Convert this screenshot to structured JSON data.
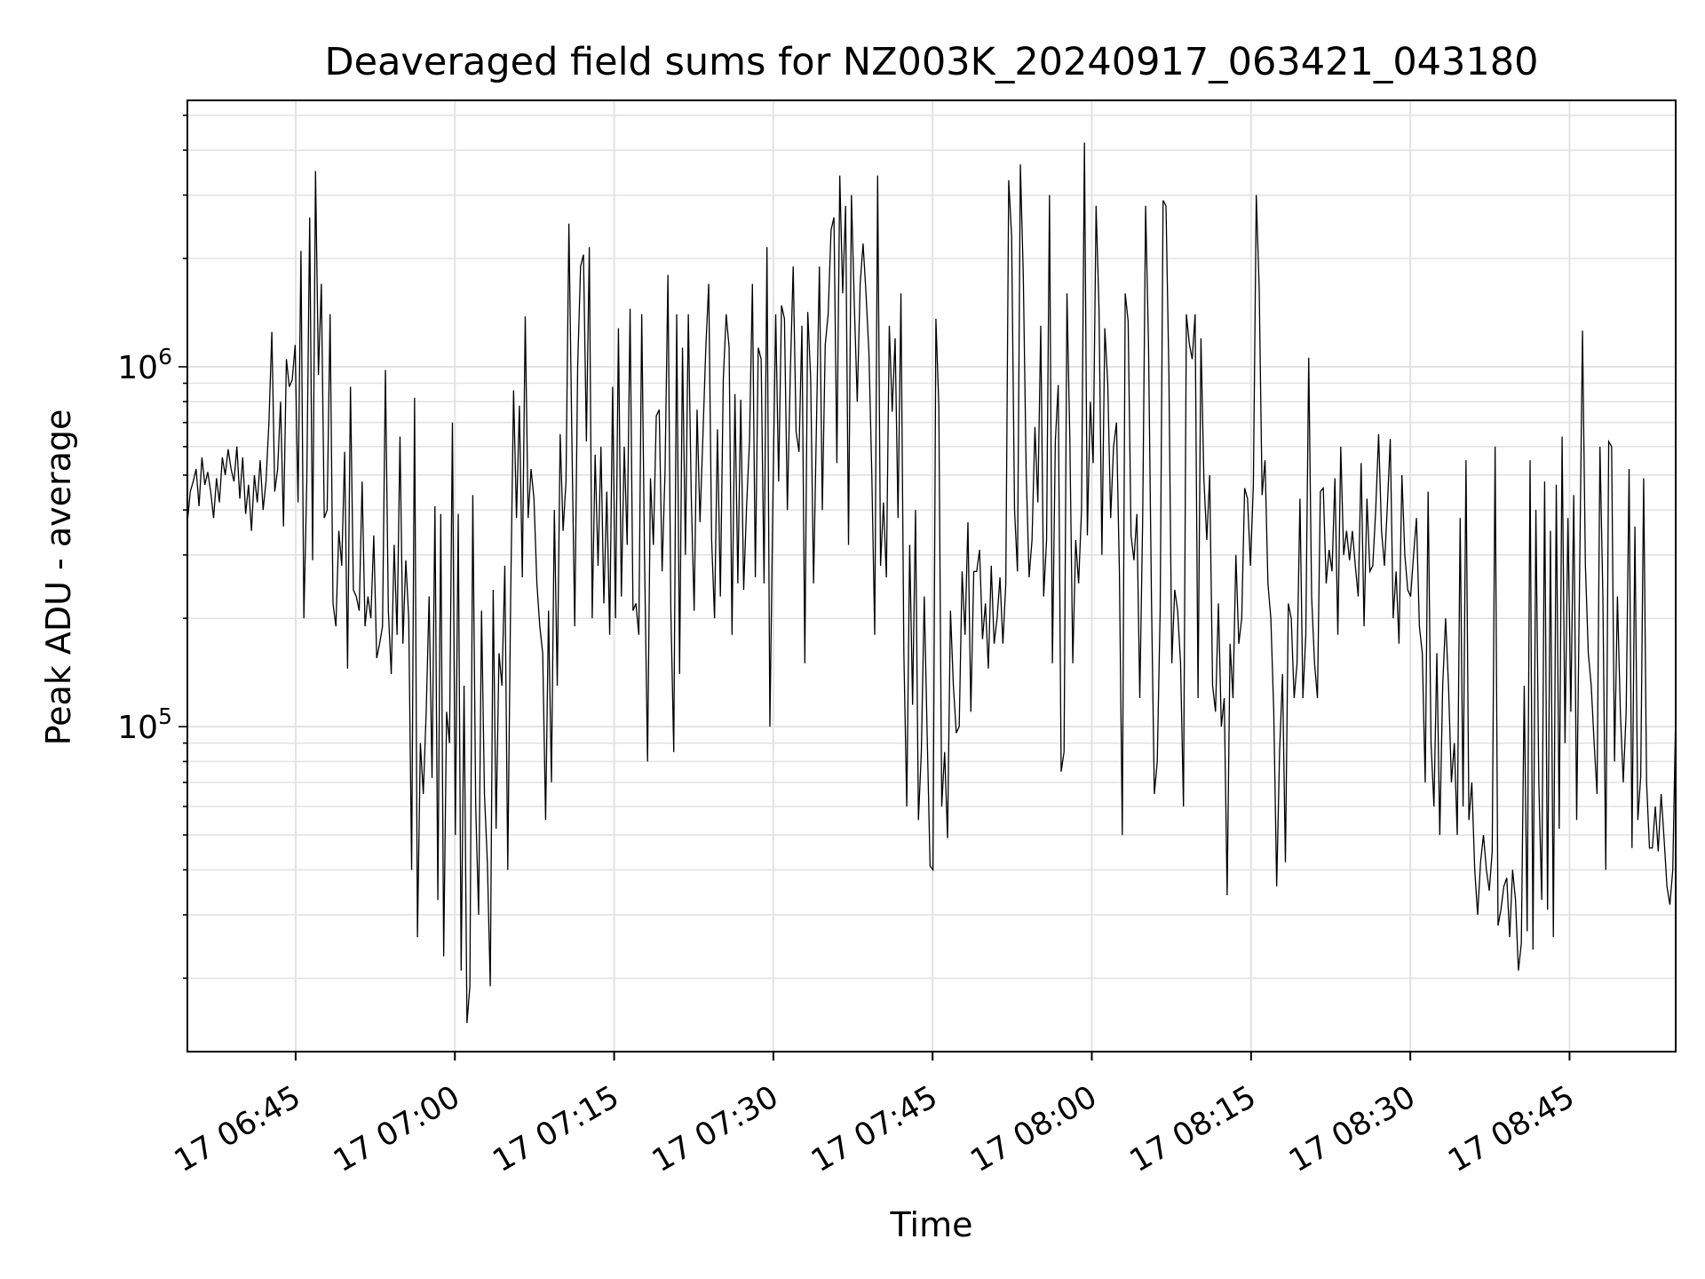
{
  "chart_data": {
    "type": "line",
    "title": "Deaveraged field sums for NZ003K_20240917_063421_043180",
    "xlabel": "Time",
    "ylabel": "Peak ADU - average",
    "yscale": "log",
    "ylim": [
      12500,
      5500000
    ],
    "xlim_minutes_after_0630": [
      4.8,
      145.0
    ],
    "grid": true,
    "line_color": "#000000",
    "xticks": [
      {
        "label": "17 06:45",
        "minute": 15
      },
      {
        "label": "17 07:00",
        "minute": 30
      },
      {
        "label": "17 07:15",
        "minute": 45
      },
      {
        "label": "17 07:30",
        "minute": 60
      },
      {
        "label": "17 07:45",
        "minute": 75
      },
      {
        "label": "17 08:00",
        "minute": 90
      },
      {
        "label": "17 08:15",
        "minute": 105
      },
      {
        "label": "17 08:30",
        "minute": 120
      },
      {
        "label": "17 08:45",
        "minute": 135
      }
    ],
    "yticks": [
      {
        "base": "10",
        "exp": "5",
        "value": 100000
      },
      {
        "base": "10",
        "exp": "6",
        "value": 1000000
      }
    ],
    "series": [
      {
        "time_range": [
          "06:34:48",
          "08:55:00"
        ],
        "y": [
          370000,
          450000,
          480000,
          520000,
          410000,
          560000,
          470000,
          510000,
          450000,
          380000,
          490000,
          420000,
          560000,
          500000,
          590000,
          520000,
          480000,
          600000,
          430000,
          560000,
          390000,
          470000,
          350000,
          500000,
          420000,
          550000,
          400000,
          480000,
          700000,
          1250000,
          450000,
          520000,
          800000,
          360000,
          1050000,
          880000,
          920000,
          1150000,
          420000,
          2100000,
          200000,
          480000,
          2600000,
          290000,
          3500000,
          950000,
          1700000,
          380000,
          400000,
          1400000,
          220000,
          190000,
          350000,
          280000,
          580000,
          145000,
          880000,
          240000,
          230000,
          210000,
          480000,
          190000,
          230000,
          200000,
          340000,
          155000,
          170000,
          190000,
          980000,
          210000,
          140000,
          320000,
          180000,
          640000,
          170000,
          290000,
          200000,
          40000,
          820000,
          26000,
          90000,
          65000,
          110000,
          230000,
          72000,
          410000,
          33000,
          390000,
          23000,
          110000,
          90000,
          700000,
          50000,
          390000,
          21000,
          130000,
          15000,
          19000,
          440000,
          60000,
          30000,
          210000,
          65000,
          42000,
          19000,
          240000,
          52000,
          160000,
          130000,
          280000,
          40000,
          230000,
          860000,
          380000,
          780000,
          260000,
          1380000,
          380000,
          520000,
          430000,
          250000,
          190000,
          160000,
          55000,
          210000,
          70000,
          400000,
          130000,
          650000,
          350000,
          480000,
          2500000,
          640000,
          190000,
          1000000,
          1900000,
          2050000,
          620000,
          2150000,
          200000,
          570000,
          280000,
          600000,
          220000,
          450000,
          180000,
          880000,
          200000,
          1280000,
          230000,
          600000,
          320000,
          1450000,
          210000,
          220000,
          180000,
          1400000,
          280000,
          80000,
          490000,
          320000,
          730000,
          760000,
          270000,
          510000,
          1800000,
          210000,
          85000,
          1400000,
          140000,
          1130000,
          300000,
          1400000,
          440000,
          210000,
          760000,
          370000,
          640000,
          1130000,
          1700000,
          330000,
          200000,
          670000,
          230000,
          920000,
          1400000,
          1130000,
          180000,
          840000,
          250000,
          810000,
          240000,
          410000,
          620000,
          1700000,
          260000,
          1130000,
          1050000,
          250000,
          2150000,
          100000,
          410000,
          1400000,
          480000,
          1480000,
          1360000,
          400000,
          950000,
          1900000,
          660000,
          580000,
          1300000,
          150000,
          1420000,
          930000,
          250000,
          700000,
          1900000,
          400000,
          1150000,
          1400000,
          2400000,
          2600000,
          540000,
          3400000,
          1600000,
          2800000,
          320000,
          3000000,
          1480000,
          800000,
          1700000,
          2200000,
          1600000,
          1100000,
          500000,
          180000,
          3400000,
          280000,
          420000,
          260000,
          1300000,
          750000,
          1200000,
          380000,
          1600000,
          160000,
          60000,
          320000,
          115000,
          400000,
          55000,
          85000,
          230000,
          95000,
          41000,
          40000,
          1360000,
          780000,
          60000,
          85000,
          49000,
          210000,
          130000,
          96000,
          100000,
          270000,
          180000,
          370000,
          110000,
          270000,
          270000,
          310000,
          175000,
          220000,
          145000,
          280000,
          170000,
          200000,
          260000,
          170000,
          250000,
          3300000,
          2300000,
          400000,
          270000,
          3650000,
          1800000,
          510000,
          260000,
          330000,
          680000,
          420000,
          1300000,
          230000,
          330000,
          3000000,
          150000,
          620000,
          890000,
          75000,
          85000,
          1600000,
          620000,
          150000,
          330000,
          250000,
          400000,
          4200000,
          340000,
          800000,
          540000,
          2800000,
          1450000,
          300000,
          1280000,
          900000,
          380000,
          600000,
          700000,
          270000,
          50000,
          1600000,
          1340000,
          340000,
          290000,
          390000,
          120000,
          380000,
          2800000,
          1150000,
          230000,
          65000,
          80000,
          210000,
          2900000,
          2800000,
          950000,
          150000,
          240000,
          210000,
          150000,
          60000,
          1400000,
          1160000,
          1050000,
          1400000,
          120000,
          1200000,
          490000,
          330000,
          500000,
          130000,
          110000,
          220000,
          100000,
          120000,
          34000,
          170000,
          120000,
          300000,
          170000,
          200000,
          460000,
          430000,
          280000,
          470000,
          3000000,
          1650000,
          440000,
          550000,
          250000,
          200000,
          110000,
          36000,
          85000,
          140000,
          42000,
          220000,
          200000,
          120000,
          150000,
          430000,
          120000,
          180000,
          1060000,
          230000,
          150000,
          120000,
          450000,
          460000,
          250000,
          310000,
          270000,
          490000,
          180000,
          600000,
          300000,
          350000,
          290000,
          350000,
          280000,
          230000,
          540000,
          190000,
          430000,
          270000,
          280000,
          400000,
          650000,
          350000,
          280000,
          410000,
          630000,
          200000,
          270000,
          170000,
          500000,
          300000,
          240000,
          230000,
          300000,
          380000,
          190000,
          160000,
          70000,
          450000,
          90000,
          60000,
          160000,
          50000,
          130000,
          200000,
          130000,
          70000,
          90000,
          50000,
          380000,
          60000,
          550000,
          55000,
          70000,
          40000,
          30000,
          42000,
          50000,
          40000,
          35000,
          45000,
          600000,
          28000,
          31000,
          36000,
          38000,
          26000,
          40000,
          33000,
          21000,
          25000,
          130000,
          27000,
          550000,
          24000,
          400000,
          70000,
          33000,
          480000,
          31000,
          350000,
          26000,
          470000,
          52000,
          640000,
          90000,
          380000,
          110000,
          440000,
          55000,
          260000,
          1260000,
          280000,
          160000,
          130000,
          90000,
          65000,
          600000,
          230000,
          40000,
          620000,
          600000,
          80000,
          230000,
          110000,
          70000,
          110000,
          520000,
          46000,
          360000,
          55000,
          73000,
          490000,
          70000,
          46000,
          46000,
          60000,
          45000,
          65000,
          49000,
          36000,
          32000,
          40000,
          110000
        ]
      }
    ]
  }
}
